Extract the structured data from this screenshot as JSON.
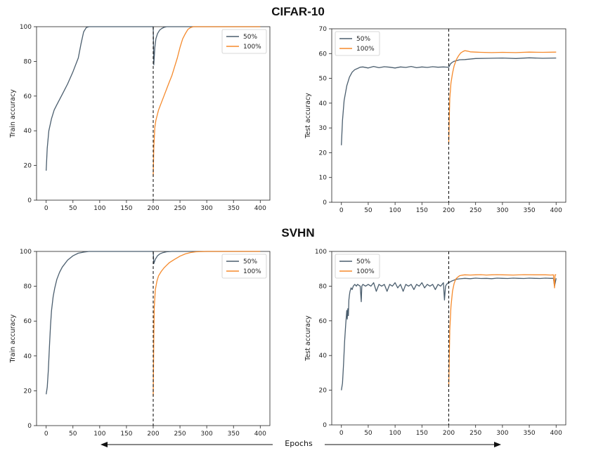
{
  "titles": {
    "top": "CIFAR-10",
    "bottom": "SVHN"
  },
  "footer": {
    "xlabel": "Epochs"
  },
  "colors": {
    "s50": "#4b5e6e",
    "s100": "#f58a2c",
    "split_line": "#000000"
  },
  "chart_data": [
    {
      "id": "cifar-train",
      "type": "line",
      "ylabel": "Train accuracy",
      "xlim": [
        -18,
        418
      ],
      "ylim": [
        0,
        100
      ],
      "xticks": [
        0,
        50,
        100,
        150,
        200,
        250,
        300,
        350,
        400
      ],
      "yticks": [
        0,
        20,
        40,
        60,
        80,
        100
      ],
      "vline": 200,
      "legend": "top-right",
      "series": [
        {
          "name": "50%",
          "color": "#4b5e6e",
          "x": [
            0,
            2,
            5,
            10,
            15,
            20,
            30,
            40,
            50,
            60,
            65,
            70,
            75,
            80,
            100,
            150,
            199,
            200,
            201,
            203,
            205,
            208,
            212,
            216,
            220,
            225,
            230,
            260,
            300,
            350,
            400
          ],
          "y": [
            17,
            30,
            40,
            47,
            52,
            55,
            61,
            67,
            74,
            82,
            90,
            97,
            99.5,
            100,
            100,
            100,
            100,
            100,
            78,
            88,
            93,
            96,
            98,
            99,
            99.6,
            100,
            100,
            100,
            100,
            100,
            100
          ]
        },
        {
          "name": "100%",
          "color": "#f58a2c",
          "x": [
            200,
            201,
            203,
            205,
            210,
            215,
            220,
            225,
            230,
            235,
            240,
            245,
            250,
            255,
            260,
            265,
            270,
            275,
            300,
            350,
            400
          ],
          "y": [
            14,
            30,
            42,
            46,
            52,
            56,
            60,
            64,
            68,
            72,
            77,
            82,
            88,
            93,
            96,
            98.5,
            99.5,
            100,
            100,
            100,
            100
          ]
        }
      ]
    },
    {
      "id": "cifar-test",
      "type": "line",
      "ylabel": "Test accuracy",
      "xlim": [
        -18,
        418
      ],
      "ylim": [
        0,
        70
      ],
      "xticks": [
        0,
        50,
        100,
        150,
        200,
        250,
        300,
        350,
        400
      ],
      "yticks": [
        0,
        10,
        20,
        30,
        40,
        50,
        60,
        70
      ],
      "vline": 200,
      "legend": "top-left",
      "series": [
        {
          "name": "50%",
          "color": "#4b5e6e",
          "x": [
            0,
            2,
            5,
            10,
            15,
            20,
            25,
            30,
            35,
            40,
            50,
            60,
            70,
            80,
            90,
            100,
            110,
            120,
            130,
            140,
            150,
            160,
            170,
            180,
            190,
            199,
            200,
            203,
            206,
            210,
            215,
            220,
            230,
            250,
            275,
            300,
            325,
            350,
            375,
            400
          ],
          "y": [
            23,
            33,
            41,
            47,
            50.5,
            52.5,
            53.5,
            54,
            54.5,
            54.6,
            54.2,
            54.8,
            54.3,
            54.7,
            54.5,
            54.2,
            54.6,
            54.4,
            54.8,
            54.3,
            54.6,
            54.4,
            54.7,
            54.5,
            54.6,
            54.5,
            54.5,
            55.8,
            56.4,
            56.9,
            57.2,
            57.5,
            57.6,
            58.0,
            58.1,
            58.2,
            58.0,
            58.3,
            58.1,
            58.2
          ]
        },
        {
          "name": "100%",
          "color": "#f58a2c",
          "x": [
            200,
            201,
            202,
            204,
            207,
            210,
            214,
            218,
            222,
            226,
            230,
            235,
            240,
            250,
            260,
            280,
            300,
            325,
            350,
            375,
            400
          ],
          "y": [
            24,
            35,
            42,
            48,
            52,
            55,
            57.5,
            59,
            60.2,
            60.8,
            61.2,
            61.0,
            60.7,
            60.6,
            60.5,
            60.4,
            60.5,
            60.4,
            60.6,
            60.5,
            60.6
          ]
        }
      ]
    },
    {
      "id": "svhn-train",
      "type": "line",
      "ylabel": "Train accuracy",
      "xlim": [
        -18,
        418
      ],
      "ylim": [
        0,
        100
      ],
      "xticks": [
        0,
        50,
        100,
        150,
        200,
        250,
        300,
        350,
        400
      ],
      "yticks": [
        0,
        20,
        40,
        60,
        80,
        100
      ],
      "vline": 200,
      "legend": "top-right",
      "series": [
        {
          "name": "50%",
          "color": "#4b5e6e",
          "x": [
            0,
            2,
            4,
            6,
            8,
            10,
            13,
            16,
            20,
            25,
            30,
            40,
            50,
            60,
            70,
            80,
            100,
            150,
            199,
            200,
            201,
            204,
            208,
            212,
            218,
            225,
            235,
            250,
            300,
            350,
            400
          ],
          "y": [
            18,
            22,
            32,
            45,
            57,
            66,
            74,
            79,
            84,
            88,
            91,
            95,
            97.5,
            99,
            99.6,
            100,
            100,
            100,
            100,
            100,
            93,
            95.5,
            97.5,
            98.5,
            99.3,
            99.8,
            100,
            100,
            100,
            100,
            100
          ]
        },
        {
          "name": "100%",
          "color": "#f58a2c",
          "x": [
            200,
            201,
            202,
            204,
            207,
            210,
            215,
            220,
            225,
            230,
            240,
            250,
            260,
            270,
            280,
            300,
            350,
            400
          ],
          "y": [
            17,
            50,
            68,
            78,
            83,
            86,
            88.5,
            90.5,
            92,
            93.5,
            95.5,
            97.3,
            98.6,
            99.4,
            99.8,
            100,
            100,
            100
          ]
        }
      ]
    },
    {
      "id": "svhn-test",
      "type": "line",
      "ylabel": "Test accuracy",
      "xlim": [
        -18,
        418
      ],
      "ylim": [
        0,
        100
      ],
      "xticks": [
        0,
        50,
        100,
        150,
        200,
        250,
        300,
        350,
        400
      ],
      "yticks": [
        0,
        20,
        40,
        60,
        80,
        100
      ],
      "vline": 200,
      "legend": "top-left",
      "series": [
        {
          "name": "50%",
          "color": "#4b5e6e",
          "x": [
            0,
            2,
            4,
            6,
            8,
            10,
            11,
            12,
            13,
            14,
            15,
            16,
            18,
            20,
            22,
            25,
            28,
            30,
            35,
            37,
            38,
            40,
            45,
            50,
            55,
            60,
            65,
            70,
            75,
            80,
            85,
            90,
            95,
            100,
            105,
            110,
            115,
            120,
            125,
            130,
            135,
            140,
            145,
            150,
            155,
            160,
            165,
            170,
            175,
            180,
            185,
            190,
            192,
            194,
            196,
            199,
            200,
            203,
            206,
            210,
            215,
            220,
            230,
            240,
            250,
            260,
            270,
            280,
            290,
            300,
            310,
            320,
            330,
            340,
            350,
            360,
            370,
            380,
            390,
            395,
            397,
            400
          ],
          "y": [
            20,
            24,
            35,
            48,
            58,
            66,
            61,
            67,
            63,
            72,
            75,
            77,
            79,
            78,
            80,
            81,
            80,
            81,
            80,
            71,
            80,
            81,
            80,
            81,
            80,
            82,
            77,
            81,
            80,
            81,
            77,
            81,
            80,
            82,
            79,
            81,
            77,
            81,
            80,
            81,
            78,
            81,
            80,
            82,
            79,
            81,
            80,
            81,
            78,
            81,
            80,
            82,
            72,
            80,
            81,
            82,
            82,
            82.5,
            83,
            83.5,
            84,
            84.2,
            84.5,
            84.3,
            84.6,
            84.4,
            84.5,
            84.3,
            84.6,
            84.5,
            84.4,
            84.6,
            84.5,
            84.4,
            84.6,
            84.5,
            84.4,
            84.6,
            84.5,
            84.5,
            80,
            84.5
          ]
        },
        {
          "name": "100%",
          "color": "#f58a2c",
          "x": [
            200,
            201,
            202,
            204,
            207,
            210,
            213,
            216,
            220,
            225,
            230,
            240,
            250,
            260,
            270,
            280,
            290,
            300,
            320,
            340,
            360,
            380,
            390,
            395,
            397,
            398,
            400
          ],
          "y": [
            22,
            40,
            55,
            68,
            77,
            81.5,
            84,
            85,
            86,
            86.3,
            86.5,
            86.4,
            86.5,
            86.6,
            86.4,
            86.5,
            86.6,
            86.5,
            86.4,
            86.6,
            86.5,
            86.5,
            86.4,
            86.5,
            79,
            86.5,
            86.5
          ]
        }
      ]
    }
  ]
}
